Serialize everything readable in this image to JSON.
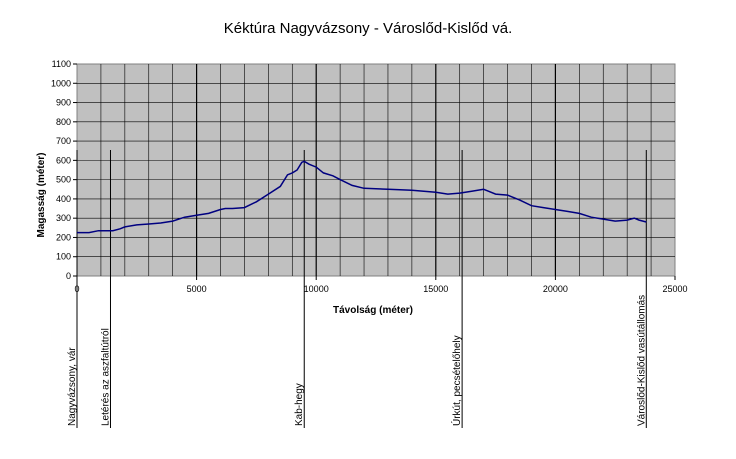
{
  "chart_data": {
    "type": "line",
    "title": "Kéktúra Nagyvázsony - Városlőd-Kislőd vá.",
    "xlabel": "Távolság (méter)",
    "ylabel": "Magasság (méter)",
    "xlim": [
      0,
      25000
    ],
    "ylim": [
      0,
      1100
    ],
    "xticks": [
      "0",
      "5000",
      "10000",
      "15000",
      "20000",
      "25000"
    ],
    "yticks": [
      "0",
      "100",
      "200",
      "300",
      "400",
      "500",
      "600",
      "700",
      "800",
      "900",
      "1000",
      "1100"
    ],
    "grid": true,
    "series": [
      {
        "color": "#000080",
        "x": [
          0,
          500,
          900,
          1300,
          1500,
          1800,
          2000,
          2500,
          3000,
          3500,
          4000,
          4500,
          5000,
          5500,
          6000,
          6200,
          6500,
          7000,
          7500,
          8000,
          8500,
          8800,
          9000,
          9200,
          9400,
          9500,
          9700,
          10000,
          10300,
          10700,
          11000,
          11500,
          12000,
          13000,
          14000,
          15000,
          15500,
          16000,
          16500,
          17000,
          17200,
          17500,
          18000,
          18500,
          19000,
          19500,
          20000,
          20500,
          21000,
          21500,
          22000,
          22500,
          23000,
          23300,
          23500,
          23800
        ],
        "y": [
          225,
          225,
          235,
          235,
          235,
          245,
          255,
          265,
          270,
          275,
          285,
          305,
          315,
          325,
          345,
          350,
          350,
          355,
          385,
          425,
          465,
          525,
          535,
          550,
          590,
          595,
          580,
          565,
          535,
          520,
          500,
          470,
          455,
          450,
          445,
          435,
          425,
          430,
          440,
          450,
          440,
          425,
          420,
          395,
          365,
          355,
          345,
          335,
          325,
          305,
          295,
          285,
          290,
          300,
          290,
          280
        ]
      }
    ],
    "annotations": [
      {
        "x": 0,
        "label": "Nagyvázsony, vár"
      },
      {
        "x": 1400,
        "label": "Letérés az aszfaltútról"
      },
      {
        "x": 9500,
        "label": "Kab-hegy"
      },
      {
        "x": 16100,
        "label": "Úrkút, pecsételőhely"
      },
      {
        "x": 23800,
        "label": "Városlőd-Kislőd vasútállomás"
      }
    ]
  }
}
